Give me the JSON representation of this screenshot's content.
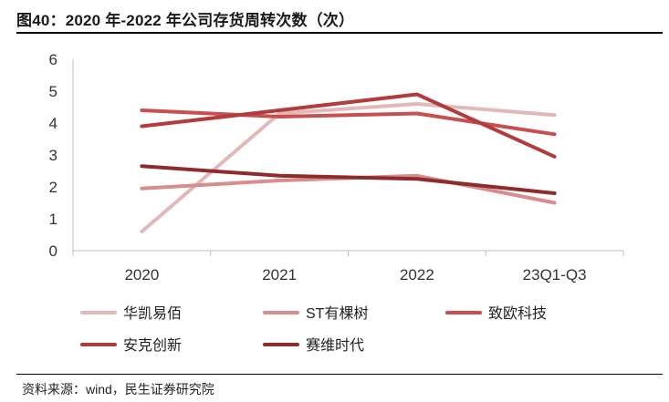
{
  "header": {
    "title": "图40：2020 年-2022 年公司存货周转次数（次）"
  },
  "footer": {
    "source": "资料来源：wind，民生证券研究院"
  },
  "chart_data": {
    "type": "line",
    "title": "2020 年-2022 年公司存货周转次数（次）",
    "xlabel": "",
    "ylabel": "",
    "categories": [
      "2020",
      "2021",
      "2022",
      "23Q1-Q3"
    ],
    "ylim": [
      0,
      6
    ],
    "yticks": [
      "0",
      "1",
      "2",
      "3",
      "4",
      "5",
      "6"
    ],
    "grid": false,
    "legend_position": "bottom",
    "series": [
      {
        "name": "华凯易佰",
        "color": "#e3b8b8",
        "values": [
          0.6,
          4.3,
          4.6,
          4.25
        ]
      },
      {
        "name": "ST有棵树",
        "color": "#d98c8c",
        "values": [
          1.95,
          2.2,
          2.35,
          1.5
        ]
      },
      {
        "name": "致欧科技",
        "color": "#c94f4f",
        "values": [
          4.4,
          4.2,
          4.3,
          3.65
        ]
      },
      {
        "name": "安克创新",
        "color": "#b23b3b",
        "values": [
          3.9,
          4.4,
          4.9,
          2.95
        ]
      },
      {
        "name": "赛维时代",
        "color": "#8e2b2b",
        "values": [
          2.65,
          2.35,
          2.25,
          1.8
        ]
      }
    ]
  }
}
